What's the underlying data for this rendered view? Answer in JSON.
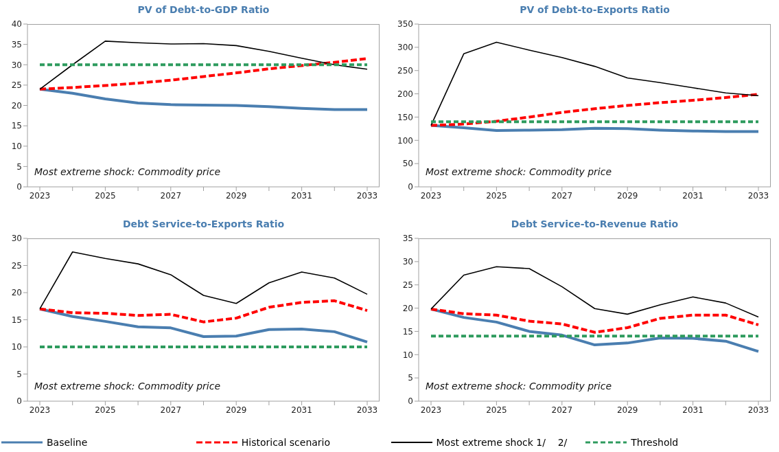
{
  "chart_data": [
    {
      "type": "line",
      "title": "PV of Debt-to-GDP Ratio",
      "categories": [
        "2023",
        null,
        "2025",
        null,
        "2027",
        null,
        "2029",
        null,
        "2031",
        null,
        "2033"
      ],
      "ylim": [
        0,
        40
      ],
      "yticks": [
        0,
        5,
        10,
        15,
        20,
        25,
        30,
        35,
        40
      ],
      "grid": false,
      "marker": "none",
      "legend": false,
      "annotations": [
        "Most extreme shock: Commodity price"
      ],
      "series": [
        {
          "color": "#4a7eb0",
          "line_style": "solid",
          "values": [
            24,
            23,
            21.6,
            20.6,
            20.2,
            20.1,
            20,
            19.7,
            19.3,
            19,
            19
          ]
        },
        {
          "color": "#ff0000",
          "line_style": "dashed",
          "values": [
            24,
            24.4,
            24.9,
            25.5,
            26.2,
            27.1,
            28,
            29,
            29.8,
            30.6,
            31.5
          ]
        },
        {
          "color": "#000000",
          "line_style": "solid",
          "values": [
            24,
            30,
            35.8,
            35.4,
            35.1,
            35.2,
            34.7,
            33.3,
            31.6,
            30,
            28.9
          ]
        },
        {
          "color": "#2e9b5e",
          "line_style": "dashed",
          "values": [
            30,
            30,
            30,
            30,
            30,
            30,
            30,
            30,
            30,
            30,
            30
          ]
        }
      ]
    },
    {
      "type": "line",
      "title": "PV of Debt-to-Exports Ratio",
      "categories": [
        "2023",
        null,
        "2025",
        null,
        "2027",
        null,
        "2029",
        null,
        "2031",
        null,
        "2033"
      ],
      "ylim": [
        0,
        350
      ],
      "yticks": [
        0,
        50,
        100,
        150,
        200,
        250,
        300,
        350
      ],
      "grid": false,
      "marker": "none",
      "legend": false,
      "annotations": [
        "Most extreme shock: Commodity price"
      ],
      "series": [
        {
          "color": "#4a7eb0",
          "line_style": "solid",
          "values": [
            132,
            127,
            121,
            122,
            123,
            126,
            125,
            122,
            120,
            119,
            119
          ]
        },
        {
          "color": "#ff0000",
          "line_style": "dashed",
          "values": [
            132,
            135,
            141,
            150,
            160,
            168,
            175,
            181,
            186,
            192,
            199
          ]
        },
        {
          "color": "#000000",
          "line_style": "solid",
          "values": [
            132,
            286,
            311,
            294,
            278,
            259,
            234,
            224,
            213,
            202,
            196
          ]
        },
        {
          "color": "#2e9b5e",
          "line_style": "dashed",
          "values": [
            140,
            140,
            140,
            140,
            140,
            140,
            140,
            140,
            140,
            140,
            140
          ]
        }
      ]
    },
    {
      "type": "line",
      "title": "Debt Service-to-Exports Ratio",
      "categories": [
        "2023",
        null,
        "2025",
        null,
        "2027",
        null,
        "2029",
        null,
        "2031",
        null,
        "2033"
      ],
      "ylim": [
        0,
        30
      ],
      "yticks": [
        0,
        5,
        10,
        15,
        20,
        25,
        30
      ],
      "grid": false,
      "marker": "none",
      "legend": false,
      "annotations": [
        "Most extreme shock: Commodity price"
      ],
      "series": [
        {
          "color": "#4a7eb0",
          "line_style": "solid",
          "values": [
            17,
            15.6,
            14.7,
            13.7,
            13.5,
            11.9,
            12,
            13.2,
            13.3,
            12.8,
            10.9
          ]
        },
        {
          "color": "#ff0000",
          "line_style": "dashed",
          "values": [
            17,
            16.3,
            16.2,
            15.8,
            16,
            14.6,
            15.3,
            17.3,
            18.2,
            18.5,
            16.7
          ]
        },
        {
          "color": "#000000",
          "line_style": "solid",
          "values": [
            17,
            27.5,
            26.3,
            25.3,
            23.3,
            19.5,
            18,
            21.8,
            23.8,
            22.7,
            19.7
          ]
        },
        {
          "color": "#2e9b5e",
          "line_style": "dashed",
          "values": [
            10,
            10,
            10,
            10,
            10,
            10,
            10,
            10,
            10,
            10,
            10
          ]
        }
      ]
    },
    {
      "type": "line",
      "title": "Debt Service-to-Revenue Ratio",
      "categories": [
        "2023",
        null,
        "2025",
        null,
        "2027",
        null,
        "2029",
        null,
        "2031",
        null,
        "2033"
      ],
      "ylim": [
        0,
        35
      ],
      "yticks": [
        0,
        5,
        10,
        15,
        20,
        25,
        30,
        35
      ],
      "grid": false,
      "marker": "none",
      "legend": "bottom",
      "annotations": [
        "Most extreme shock: Commodity price"
      ],
      "series": [
        {
          "name": "Baseline",
          "color": "#4a7eb0",
          "line_style": "solid",
          "values": [
            19.8,
            18,
            17,
            15,
            14.2,
            12.1,
            12.5,
            13.6,
            13.5,
            12.9,
            10.7
          ]
        },
        {
          "name": "Historical scenario",
          "color": "#ff0000",
          "line_style": "dashed",
          "values": [
            19.8,
            18.8,
            18.5,
            17.2,
            16.6,
            14.8,
            15.8,
            17.8,
            18.5,
            18.5,
            16.4
          ]
        },
        {
          "name": "Most extreme shock 1/    2/",
          "color": "#000000",
          "line_style": "solid",
          "values": [
            19.8,
            27.1,
            28.9,
            28.5,
            24.6,
            19.9,
            18.7,
            20.7,
            22.4,
            21.1,
            18.1
          ]
        },
        {
          "name": "Threshold",
          "color": "#2e9b5e",
          "line_style": "dashed",
          "values": [
            14,
            14,
            14,
            14,
            14,
            14,
            14,
            14,
            14,
            14,
            14
          ]
        }
      ]
    }
  ]
}
